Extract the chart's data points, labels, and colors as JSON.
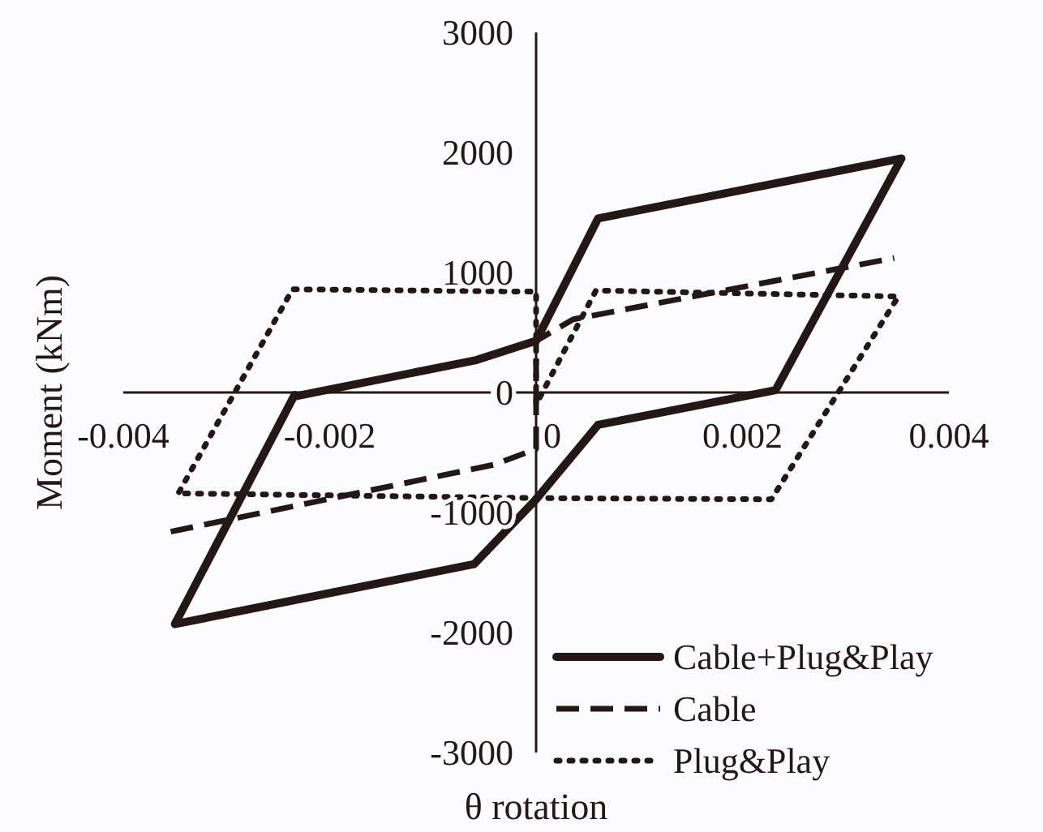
{
  "chart_data": {
    "type": "line",
    "xlabel": "θ rotation",
    "ylabel": "Moment (kNm)",
    "xlim": [
      -0.004,
      0.004
    ],
    "xticks": [
      -0.004,
      -0.002,
      0,
      0.002,
      0.004
    ],
    "ylim": [
      -3000,
      3000
    ],
    "yticks": [
      -3000,
      -2000,
      -1000,
      0,
      1000,
      2000,
      3000
    ],
    "grid": false,
    "legend": "bottom right",
    "marker": "none",
    "series": [
      {
        "name": "Cable+Plug&Play",
        "color": "#231815",
        "line_style": "solid",
        "x": [
          -0.00232,
          -0.00058,
          0,
          0.0006,
          0.00354,
          0.00232,
          0.0006,
          0,
          -0.0006,
          -0.0035,
          -0.00234
        ],
        "values": [
          -30,
          270,
          430,
          1450,
          1950,
          20,
          -270,
          -890,
          -1430,
          -1930,
          -20
        ]
      },
      {
        "name": "Cable",
        "color": "#231815",
        "line_style": "dashed",
        "x": [
          -0.00354,
          -0.0004,
          0,
          0,
          0.00036,
          0.00347
        ],
        "values": [
          -1160,
          -600,
          -470,
          430,
          610,
          1120
        ]
      },
      {
        "name": "Plug&Play",
        "color": "#231815",
        "line_style": "dotted",
        "x": [
          -0.00346,
          -0.00236,
          0,
          0,
          0.00058,
          0.00351,
          0.00228,
          0,
          -0.00348
        ],
        "values": [
          -830,
          860,
          840,
          -100,
          850,
          800,
          -890,
          -880,
          -840
        ]
      }
    ]
  }
}
